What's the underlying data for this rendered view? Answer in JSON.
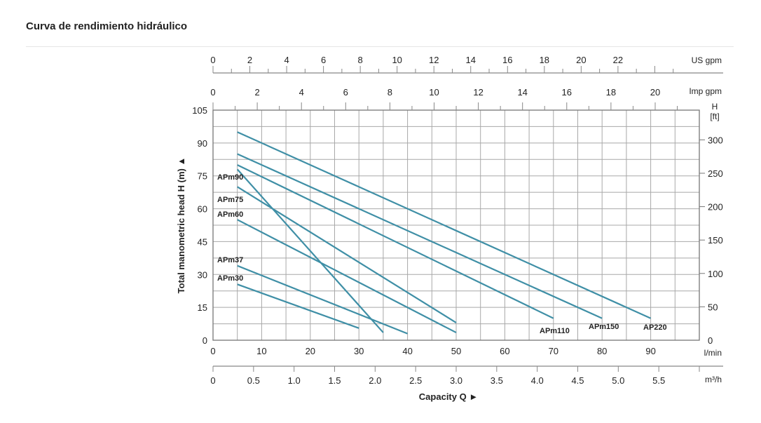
{
  "page_title": "Curva de rendimiento hidráulico",
  "chart_data": {
    "type": "line",
    "title": "Curva de rendimiento hidráulico",
    "xlabel": "Capacity Q",
    "ylabel": "Total manometric head H (m)",
    "xlim": [
      0,
      100
    ],
    "ylim": [
      0,
      105
    ],
    "grid": true,
    "x_units": "l/min",
    "x_ticks": [
      0,
      10,
      20,
      30,
      40,
      50,
      60,
      70,
      80,
      90
    ],
    "y_ticks": [
      0,
      15,
      30,
      45,
      60,
      75,
      90,
      105
    ],
    "secondary_axes": {
      "us_gpm": {
        "label": "US gpm",
        "ticks": [
          0,
          2,
          4,
          6,
          8,
          10,
          12,
          14,
          16,
          18,
          20,
          22
        ]
      },
      "imp_gpm": {
        "label": "Imp gpm",
        "ticks": [
          0,
          2,
          4,
          6,
          8,
          10,
          12,
          14,
          16,
          18,
          20
        ]
      },
      "m3h": {
        "label": "m³/h",
        "ticks": [
          "0",
          "0.5",
          "1.0",
          "1.5",
          "2.0",
          "2.5",
          "3.0",
          "3.5",
          "4.0",
          "4.5",
          "5.0",
          "5.5"
        ]
      },
      "ft": {
        "label_top": "H",
        "label_unit": "[ft]",
        "ticks": [
          0,
          50,
          100,
          150,
          200,
          250,
          300
        ]
      }
    },
    "series": [
      {
        "name": "APm30",
        "x": [
          5,
          30
        ],
        "y": [
          25.5,
          5.5
        ]
      },
      {
        "name": "APm37",
        "x": [
          5,
          40
        ],
        "y": [
          34,
          3
        ]
      },
      {
        "name": "APm60",
        "x": [
          5,
          50
        ],
        "y": [
          55,
          3.5
        ]
      },
      {
        "name": "APm75",
        "x": [
          5,
          50
        ],
        "y": [
          70,
          8
        ]
      },
      {
        "name": "APm90",
        "x": [
          5,
          35
        ],
        "y": [
          78,
          3.5
        ]
      },
      {
        "name": "APm110",
        "x": [
          5,
          70
        ],
        "y": [
          80,
          10
        ]
      },
      {
        "name": "APm150",
        "x": [
          5,
          80
        ],
        "y": [
          85,
          10
        ]
      },
      {
        "name": "AP220",
        "x": [
          5,
          90
        ],
        "y": [
          95,
          10
        ]
      }
    ],
    "line_color": "#3f8fa6",
    "grid_color": "#a8a8a8"
  }
}
